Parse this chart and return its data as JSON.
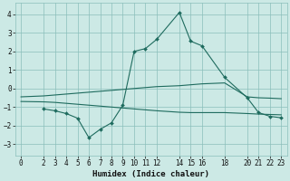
{
  "xlabel": "Humidex (Indice chaleur)",
  "bg_color": "#cce9e5",
  "grid_color": "#8abfbb",
  "line_color": "#1e6b5e",
  "xticks": [
    0,
    2,
    3,
    4,
    5,
    6,
    7,
    8,
    9,
    10,
    11,
    12,
    14,
    15,
    16,
    18,
    20,
    21,
    22,
    23
  ],
  "yticks": [
    -3,
    -2,
    -1,
    0,
    1,
    2,
    3,
    4
  ],
  "ylim": [
    -3.6,
    4.6
  ],
  "xlim": [
    -0.5,
    23.5
  ],
  "line1_x": [
    0,
    2,
    3,
    4,
    5,
    6,
    7,
    8,
    9,
    10,
    11,
    12,
    14,
    15,
    16,
    18,
    20,
    21,
    22,
    23
  ],
  "line1_y": [
    -0.45,
    -0.4,
    -0.35,
    -0.3,
    -0.25,
    -0.2,
    -0.15,
    -0.1,
    -0.05,
    0.0,
    0.05,
    0.1,
    0.15,
    0.2,
    0.25,
    0.3,
    -0.45,
    -0.5,
    -0.52,
    -0.55
  ],
  "line2_x": [
    0,
    2,
    3,
    4,
    5,
    6,
    7,
    8,
    9,
    10,
    11,
    12,
    14,
    15,
    16,
    18,
    20,
    21,
    22,
    23
  ],
  "line2_y": [
    -0.7,
    -0.72,
    -0.75,
    -0.8,
    -0.85,
    -0.9,
    -0.95,
    -1.0,
    -1.05,
    -1.1,
    -1.15,
    -1.2,
    -1.28,
    -1.3,
    -1.3,
    -1.3,
    -1.35,
    -1.38,
    -1.4,
    -1.42
  ],
  "line3_x": [
    2,
    3,
    4,
    5,
    6,
    7,
    8,
    9,
    10,
    11,
    12,
    14,
    15,
    16,
    18,
    20,
    21,
    22,
    23
  ],
  "line3_y": [
    -1.1,
    -1.2,
    -1.35,
    -1.6,
    -2.65,
    -2.2,
    -1.85,
    -0.9,
    2.0,
    2.15,
    2.65,
    4.1,
    2.55,
    2.3,
    0.6,
    -0.5,
    -1.3,
    -1.5,
    -1.58
  ]
}
